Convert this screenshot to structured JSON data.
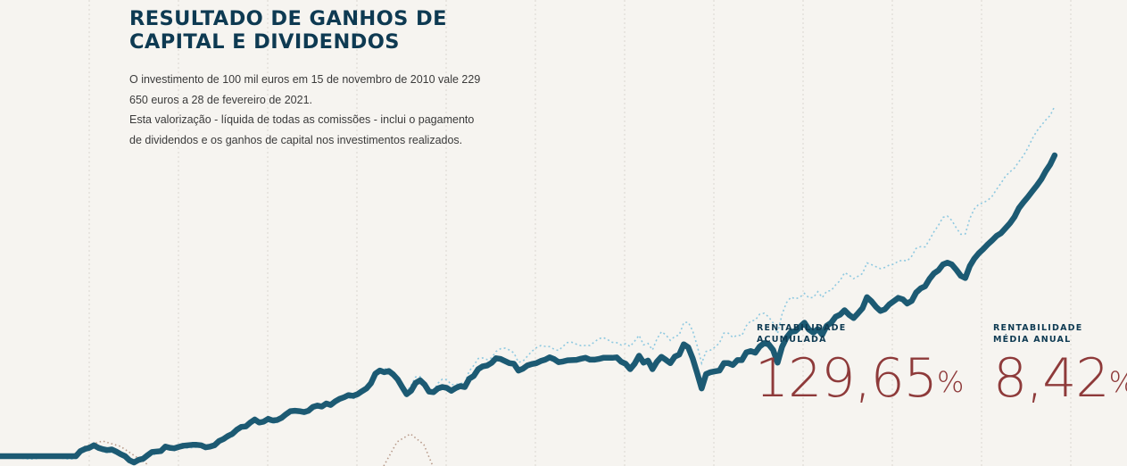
{
  "header": {
    "title_line1": "RESULTADO DE GANHOS DE",
    "title_line2": "CAPITAL E DIVIDENDOS"
  },
  "description": {
    "p1_line1": "O investimento de 100 mil euros em 15 de novembro de 2010 vale 229",
    "p1_line2": "650 euros a 28 de fevereiro de 2021.",
    "p2_line1": "Esta valorização - líquida de todas as comissões - inclui o pagamento",
    "p2_line2": "de dividendos e os ganhos de capital nos investimentos realizados."
  },
  "stats": {
    "cumulative": {
      "label_line1": "RENTABILIDADE",
      "label_line2": "ACUMULADA",
      "value": "129,65",
      "unit": "%"
    },
    "annual": {
      "label_line1": "RENTABILIDADE",
      "label_line2": "MÉDIA ANUAL",
      "value": "8,42",
      "unit": "%"
    }
  },
  "colors": {
    "main_line": "#1c5a73",
    "benchmark_line": "#8fc9e0",
    "tertiary_line": "#b89a8a",
    "accent_value": "#8e3a3a",
    "title": "#0e3a52",
    "gridline": "#dad6cf",
    "background": "#f6f4f0"
  },
  "chart_data": {
    "type": "line",
    "x_index": [
      0,
      1,
      2,
      3,
      4,
      5,
      6,
      7,
      8,
      9,
      10,
      11,
      12,
      13,
      14,
      15,
      16,
      17,
      18,
      19,
      20,
      21,
      22,
      23,
      24,
      25,
      26,
      27,
      28,
      29,
      30,
      31,
      32,
      33,
      34,
      35,
      36,
      37,
      38,
      39,
      40,
      41,
      42,
      43,
      44,
      45,
      46,
      47,
      48,
      49,
      50,
      51,
      52,
      53,
      54,
      55,
      56,
      57,
      58,
      59,
      60,
      61,
      62,
      63,
      64,
      65,
      66,
      67,
      68,
      69,
      70,
      71,
      72,
      73,
      74,
      75,
      76,
      77,
      78,
      79,
      80,
      81,
      82,
      83,
      84,
      85,
      86,
      87,
      88,
      89,
      90,
      91,
      92,
      93,
      94,
      95,
      96,
      97,
      98,
      99,
      100,
      101,
      102,
      103,
      104,
      105,
      106,
      107,
      108,
      109,
      110,
      111,
      112,
      113,
      114,
      115,
      116,
      117,
      118,
      119,
      120,
      121,
      122,
      123,
      124,
      125,
      126,
      127,
      128,
      129,
      130,
      131,
      132,
      133,
      134,
      135,
      136,
      137,
      138,
      139,
      140,
      141,
      142,
      143,
      144,
      145,
      146,
      147,
      148,
      149,
      150,
      151,
      152,
      153,
      154,
      155,
      156,
      157,
      158,
      159,
      160,
      161,
      162,
      163,
      164,
      165,
      166,
      167,
      168,
      169,
      170,
      171,
      172,
      173,
      174,
      175,
      176,
      177,
      178,
      179,
      180,
      181,
      182,
      183,
      184,
      185,
      186,
      187,
      188,
      189,
      190,
      191,
      192,
      193,
      194,
      195,
      196,
      197,
      198,
      199,
      200,
      201,
      202,
      203,
      204,
      205,
      206,
      207,
      208,
      209,
      210,
      211,
      212,
      213,
      214,
      215,
      216,
      217,
      218,
      219,
      220,
      221,
      222,
      223,
      224,
      225,
      226,
      227,
      228,
      229,
      230,
      231,
      232,
      233,
      234,
      235,
      236,
      237,
      238,
      239,
      240,
      241,
      242,
      243,
      244
    ],
    "series": [
      {
        "style": "solid",
        "values": [
          100,
          100,
          100,
          100,
          100,
          100,
          100,
          100,
          100,
          100,
          100,
          100,
          100,
          100,
          100,
          100,
          100,
          100,
          102.2,
          103.1,
          103.6,
          104.7,
          103.6,
          103,
          102.6,
          102.9,
          102,
          100.9,
          100,
          98.2,
          97.3,
          98.4,
          98.9,
          100.4,
          101.8,
          102,
          102.2,
          104.1,
          103.6,
          103.4,
          104,
          104.5,
          104.7,
          104.9,
          104.9,
          104.7,
          103.8,
          104.1,
          104.7,
          106.5,
          107.4,
          108.7,
          109.6,
          111.4,
          112.6,
          112.8,
          114.5,
          115.8,
          114.5,
          114.9,
          116.1,
          115.4,
          115.6,
          116.5,
          118.1,
          119.4,
          119.6,
          119.4,
          119,
          119.6,
          121.2,
          121.8,
          121.4,
          122.7,
          122.1,
          123.6,
          124.7,
          125.4,
          126.3,
          126,
          126.7,
          128,
          129.2,
          131.4,
          135.6,
          136.9,
          136.2,
          136.7,
          135.2,
          133.1,
          129.8,
          126.7,
          128.2,
          131.6,
          132.7,
          130.9,
          127.8,
          127.6,
          129.2,
          129.8,
          129.4,
          128.2,
          129.4,
          130.2,
          129.8,
          133.4,
          134.6,
          137.5,
          138.7,
          139.1,
          140.2,
          142.2,
          141.9,
          141,
          140.1,
          139.8,
          136.9,
          137.7,
          139.1,
          139.7,
          140.1,
          141,
          141.6,
          142.6,
          141.8,
          140.5,
          140.8,
          141.3,
          141.4,
          141.5,
          142,
          142.4,
          141.6,
          141.6,
          141.9,
          142.4,
          142.4,
          142.4,
          142.6,
          140.7,
          139.8,
          137.5,
          139.8,
          143.3,
          140.3,
          141.2,
          137.5,
          140.7,
          142.8,
          141.5,
          140.1,
          142.9,
          143.8,
          148.2,
          146.9,
          142.1,
          135.8,
          129.2,
          135.4,
          136.2,
          136.6,
          136.9,
          140.1,
          140.1,
          139.3,
          141.4,
          141.4,
          144.7,
          145.3,
          144.6,
          147.3,
          148.7,
          148.2,
          145.8,
          140.3,
          147.1,
          151.1,
          153.6,
          153.9,
          155.7,
          157.5,
          154.6,
          153.3,
          154.8,
          152.4,
          156.2,
          157.5,
          160.1,
          161,
          162.9,
          160.9,
          159.5,
          161.6,
          163.8,
          168.5,
          166.8,
          164.4,
          162.6,
          163.3,
          165.4,
          166.8,
          168.2,
          167.6,
          165.8,
          166.9,
          170.5,
          172.3,
          173.2,
          176.4,
          178.8,
          180.1,
          182.6,
          183.4,
          182.6,
          180.3,
          177.7,
          176.8,
          181.9,
          185.1,
          187.4,
          189.2,
          191.2,
          193,
          194.9,
          196.1,
          198.2,
          200.4,
          203.1,
          206.9,
          209.4,
          211.7,
          214.2,
          216.6,
          219.3,
          222.8,
          225.7,
          229.65
        ]
      }
    ],
    "stat_cumulative_pct": 129.65,
    "stat_annual_pct": 8.42
  }
}
